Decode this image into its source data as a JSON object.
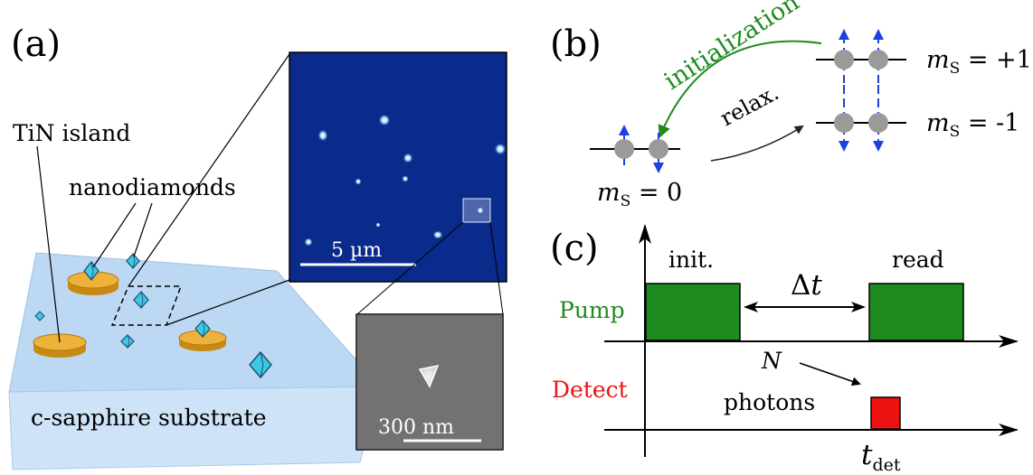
{
  "panel_a": {
    "label": "(a)",
    "tin_island_label": "TiN island",
    "nanodiamonds_label": "nanodiamonds",
    "substrate_label": "c-sapphire substrate",
    "confocal_scalebar": "5 µm",
    "sem_scalebar": "300 nm"
  },
  "panel_b": {
    "label": "(b)",
    "initialization_label": "initialization",
    "relax_label": "relax.",
    "ms0": {
      "m": "m",
      "sub": "S",
      "eq": " = 0"
    },
    "ms_plus": {
      "m": "m",
      "sub": "S",
      "eq": " = +1"
    },
    "ms_minus": {
      "m": "m",
      "sub": "S",
      "eq": " = -1"
    }
  },
  "panel_c": {
    "label": "(c)",
    "pump_label": "Pump",
    "detect_label": "Detect",
    "init_label": "init.",
    "read_label": "read",
    "delta_t": {
      "delta": "Δ",
      "t": "t"
    },
    "n_label": "N",
    "photons_label": "photons",
    "t_det": {
      "t": "t",
      "sub": "det"
    }
  },
  "colors": {
    "pump_green": "#1f8a1f",
    "detect_red": "#ee1111",
    "substrate_blue": "#b7d4f2",
    "tin_gold": "#e8a623",
    "diamond_cyan": "#3cc9e6",
    "confocal_bg": "#0a2a8c",
    "sem_gray": "#6e6e6e",
    "spin_arrow_blue": "#1e3fe0",
    "ms_level_gray": "#9a9a9a"
  }
}
